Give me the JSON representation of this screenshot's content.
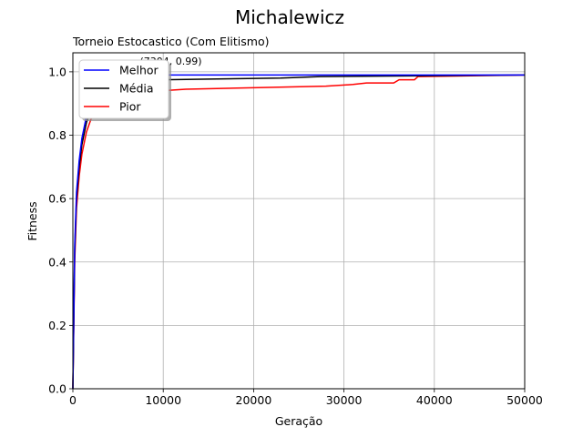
{
  "chart_data": {
    "type": "line",
    "title": "Michalewicz",
    "subtitle": "Torneio Estocastico (Com Elitismo)",
    "xlabel": "Geração",
    "ylabel": "Fitness",
    "xlim": [
      0,
      50000
    ],
    "ylim": [
      0,
      1.06
    ],
    "x_ticks": [
      0,
      10000,
      20000,
      30000,
      40000,
      50000
    ],
    "x_tick_labels": [
      "0",
      "10000",
      "20000",
      "30000",
      "40000",
      "50000"
    ],
    "y_ticks": [
      0.0,
      0.2,
      0.4,
      0.6,
      0.8,
      1.0
    ],
    "y_tick_labels": [
      "0.0",
      "0.2",
      "0.4",
      "0.6",
      "0.8",
      "1.0"
    ],
    "grid": true,
    "legend_position": "top-left",
    "annotation": {
      "text": "(7304, 0.99)",
      "x": 7304,
      "y": 0.99
    },
    "series": [
      {
        "name": "Melhor",
        "color": "#0000ff",
        "x": [
          0,
          200,
          400,
          700,
          1000,
          1500,
          2000,
          3000,
          4000,
          5500,
          7304,
          50000
        ],
        "y": [
          0.0,
          0.45,
          0.62,
          0.72,
          0.79,
          0.86,
          0.9,
          0.94,
          0.965,
          0.98,
          0.99,
          0.99
        ]
      },
      {
        "name": "Média",
        "color": "#000000",
        "x": [
          0,
          200,
          400,
          700,
          1000,
          1500,
          2000,
          3000,
          4000,
          6000,
          10000,
          23000,
          27400,
          50000
        ],
        "y": [
          0.0,
          0.43,
          0.6,
          0.7,
          0.77,
          0.84,
          0.88,
          0.92,
          0.945,
          0.965,
          0.975,
          0.98,
          0.985,
          0.99
        ]
      },
      {
        "name": "Pior",
        "color": "#ff0000",
        "x": [
          0,
          200,
          400,
          700,
          1000,
          1500,
          2000,
          3000,
          4500,
          7000,
          12500,
          20500,
          28000,
          31000,
          32500,
          35500,
          36100,
          37800,
          38200,
          50000
        ],
        "y": [
          0.0,
          0.4,
          0.57,
          0.67,
          0.74,
          0.81,
          0.85,
          0.89,
          0.915,
          0.935,
          0.945,
          0.95,
          0.955,
          0.96,
          0.965,
          0.965,
          0.975,
          0.975,
          0.985,
          0.99
        ]
      }
    ]
  }
}
